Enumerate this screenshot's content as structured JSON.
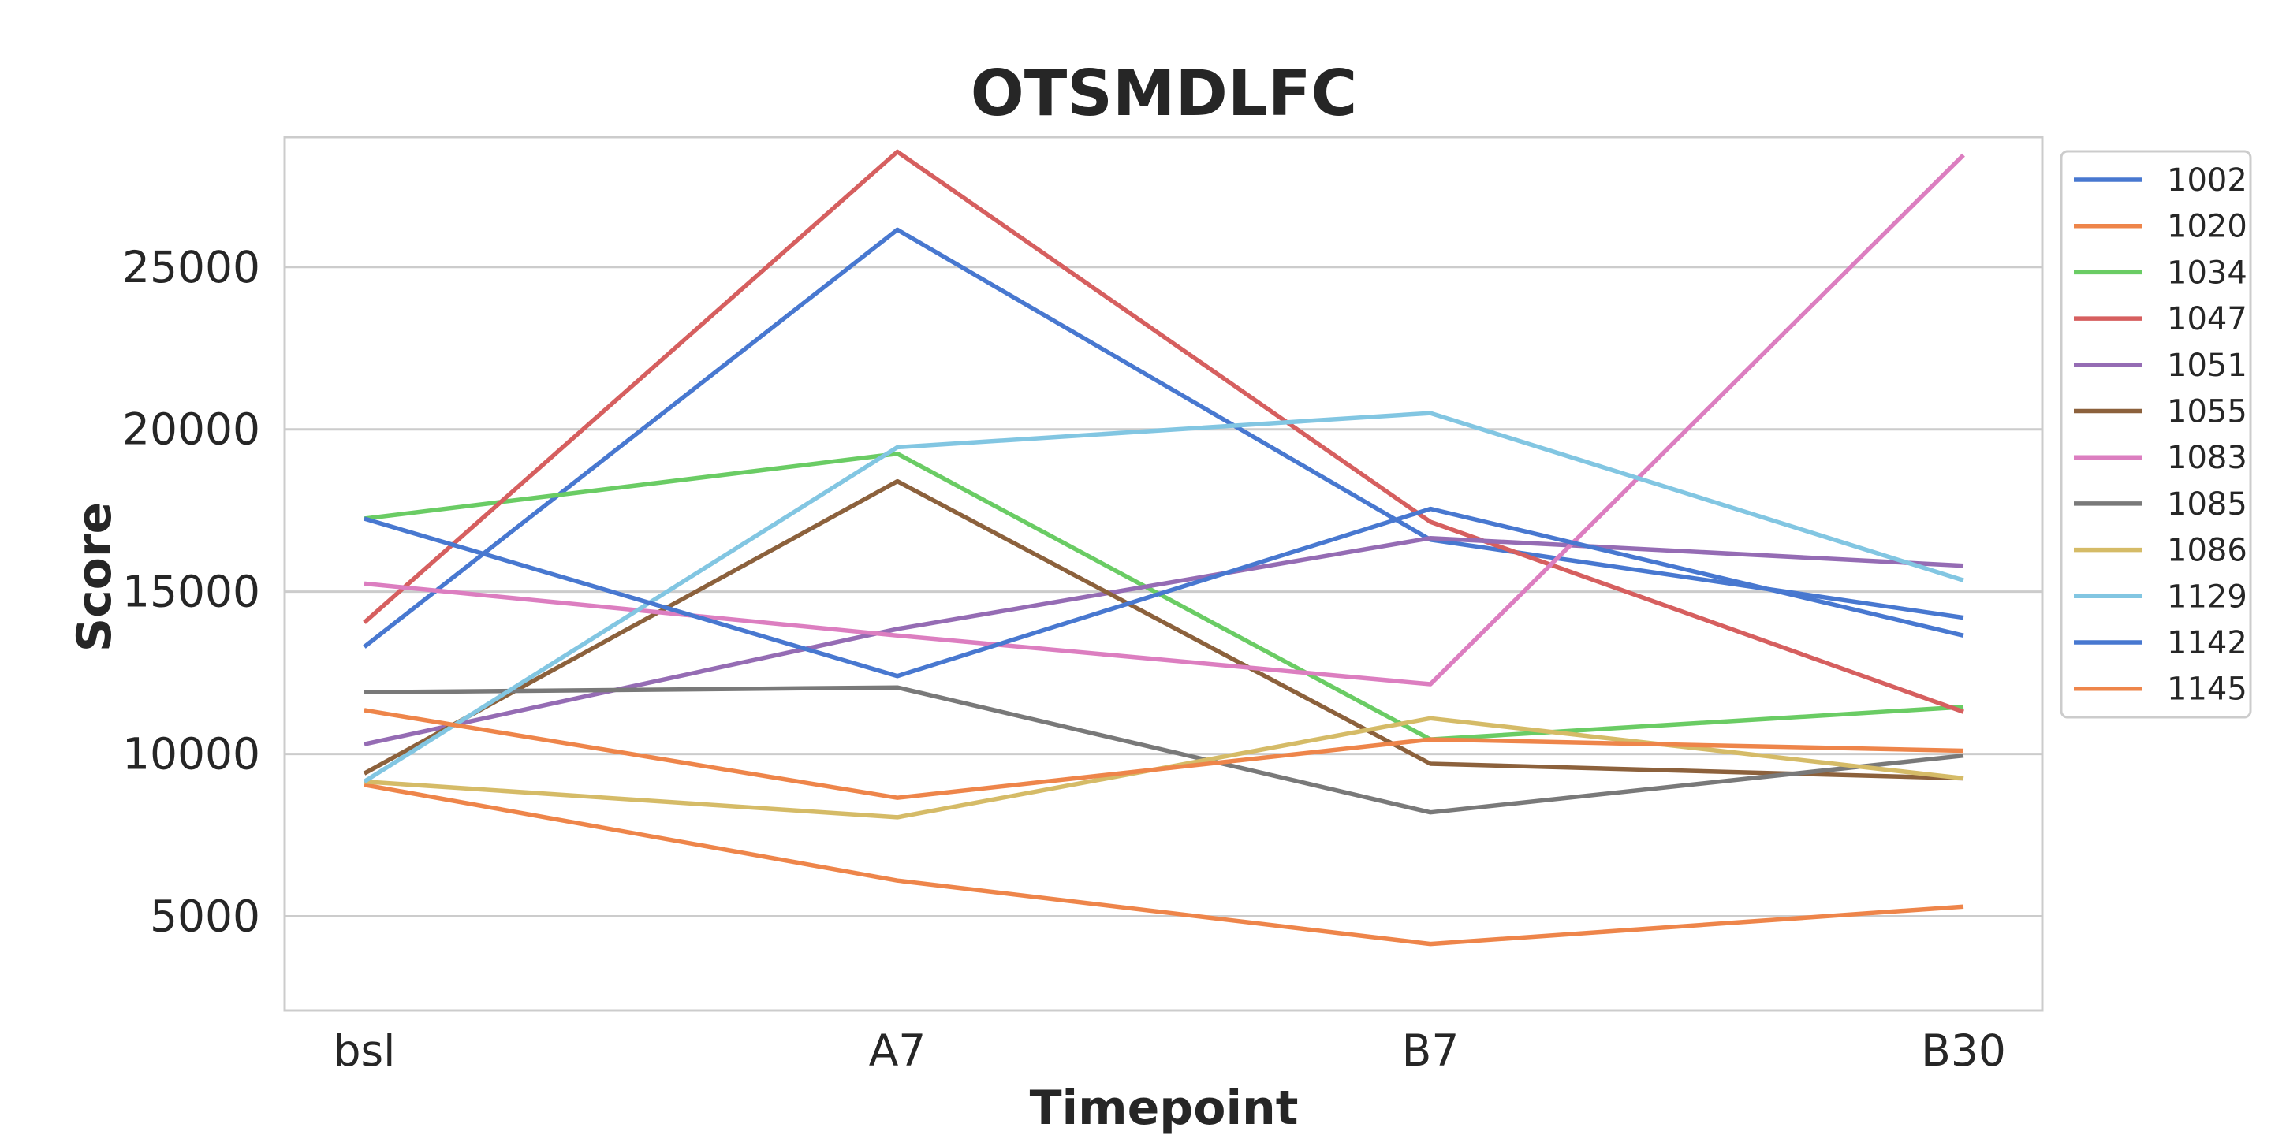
{
  "chart_data": {
    "type": "line",
    "title": "OTSMDLFC",
    "xlabel": "Timepoint",
    "ylabel": "Score",
    "categories": [
      "bsl",
      "A7",
      "B7",
      "B30"
    ],
    "yticks": [
      5000,
      10000,
      15000,
      20000,
      25000
    ],
    "ylim": [
      2100,
      29000
    ],
    "grid": "horizontal",
    "legend_position": "right-outside-top",
    "series": [
      {
        "name": "1002",
        "color": "#4878d0",
        "values": [
          13300,
          26150,
          16600,
          14200
        ]
      },
      {
        "name": "1020",
        "color": "#ee854a",
        "values": [
          9050,
          6100,
          4150,
          5300
        ]
      },
      {
        "name": "1034",
        "color": "#6acc64",
        "values": [
          17250,
          19250,
          10450,
          11450
        ]
      },
      {
        "name": "1047",
        "color": "#d65f5f",
        "values": [
          14050,
          28550,
          17150,
          11300
        ]
      },
      {
        "name": "1051",
        "color": "#956cb4",
        "values": [
          10300,
          13850,
          16650,
          15800
        ]
      },
      {
        "name": "1055",
        "color": "#8c613c",
        "values": [
          9400,
          18400,
          9700,
          9250
        ]
      },
      {
        "name": "1083",
        "color": "#dc7ec0",
        "values": [
          15250,
          13650,
          12150,
          28450
        ]
      },
      {
        "name": "1085",
        "color": "#797979",
        "values": [
          11900,
          12050,
          8200,
          9950
        ]
      },
      {
        "name": "1086",
        "color": "#d5bb67",
        "values": [
          9150,
          8050,
          11100,
          9250
        ]
      },
      {
        "name": "1129",
        "color": "#82c6e2",
        "values": [
          9150,
          19450,
          20500,
          15350
        ]
      },
      {
        "name": "1142",
        "color": "#4878d0",
        "values": [
          17250,
          12400,
          17550,
          13650
        ]
      },
      {
        "name": "1145",
        "color": "#ee854a",
        "values": [
          11350,
          8650,
          10450,
          10100
        ]
      }
    ]
  }
}
